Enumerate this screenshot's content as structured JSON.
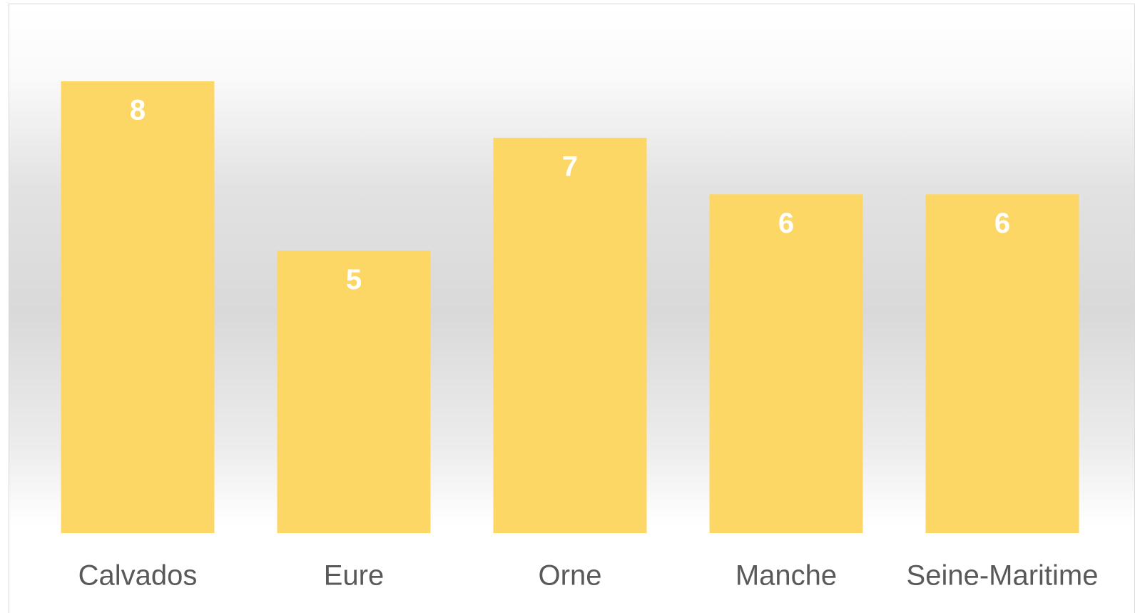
{
  "chart_data": {
    "type": "bar",
    "categories": [
      "Calvados",
      "Eure",
      "Orne",
      "Manche",
      "Seine-Maritime"
    ],
    "values": [
      8,
      5,
      7,
      6,
      6
    ],
    "color": "#fdd766"
  }
}
